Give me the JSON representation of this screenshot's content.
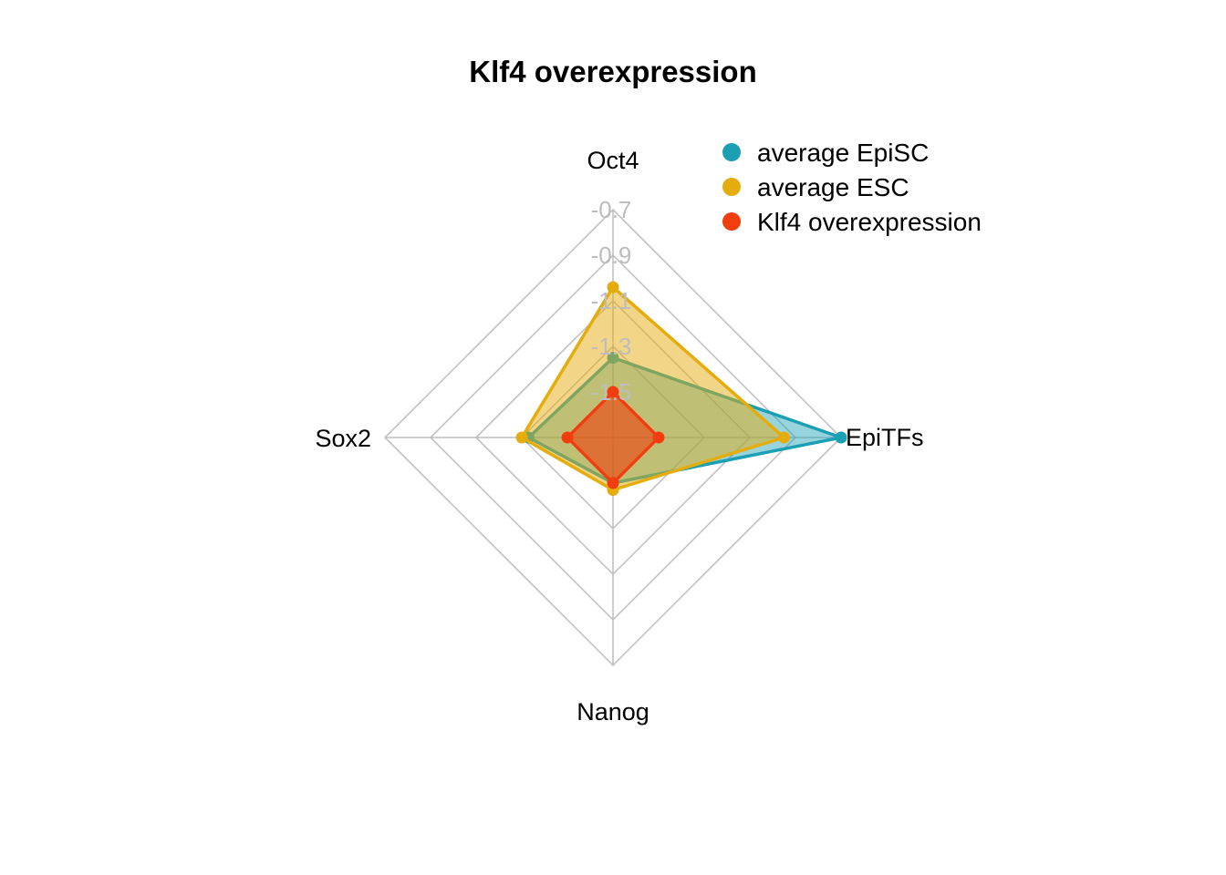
{
  "chart_data": {
    "type": "radar",
    "title": "Klf4 overexpression",
    "axes": [
      "Oct4",
      "EpiTFs",
      "Nanog",
      "Sox2"
    ],
    "tick_labels": [
      "-0.7",
      "-0.9",
      "-1.1",
      "-1.3",
      "-1.5"
    ],
    "range": [
      -1.7,
      -0.7
    ],
    "ticks": [
      -0.7,
      -0.9,
      -1.1,
      -1.3,
      -1.5,
      -1.7
    ],
    "grid": true,
    "legend_position": "top-right",
    "series": [
      {
        "name": "average EpiSC",
        "color": "#1b9fb3",
        "fill_opacity": 0.45,
        "values": [
          -1.35,
          -0.7,
          -1.5,
          -1.33
        ]
      },
      {
        "name": "average ESC",
        "color": "#e5ac0d",
        "fill_opacity": 0.5,
        "values": [
          -1.04,
          -0.95,
          -1.47,
          -1.3
        ]
      },
      {
        "name": "Klf4 overexpression",
        "color": "#f23d0e",
        "fill_opacity": 0.6,
        "values": [
          -1.5,
          -1.5,
          -1.5,
          -1.5
        ]
      }
    ]
  }
}
